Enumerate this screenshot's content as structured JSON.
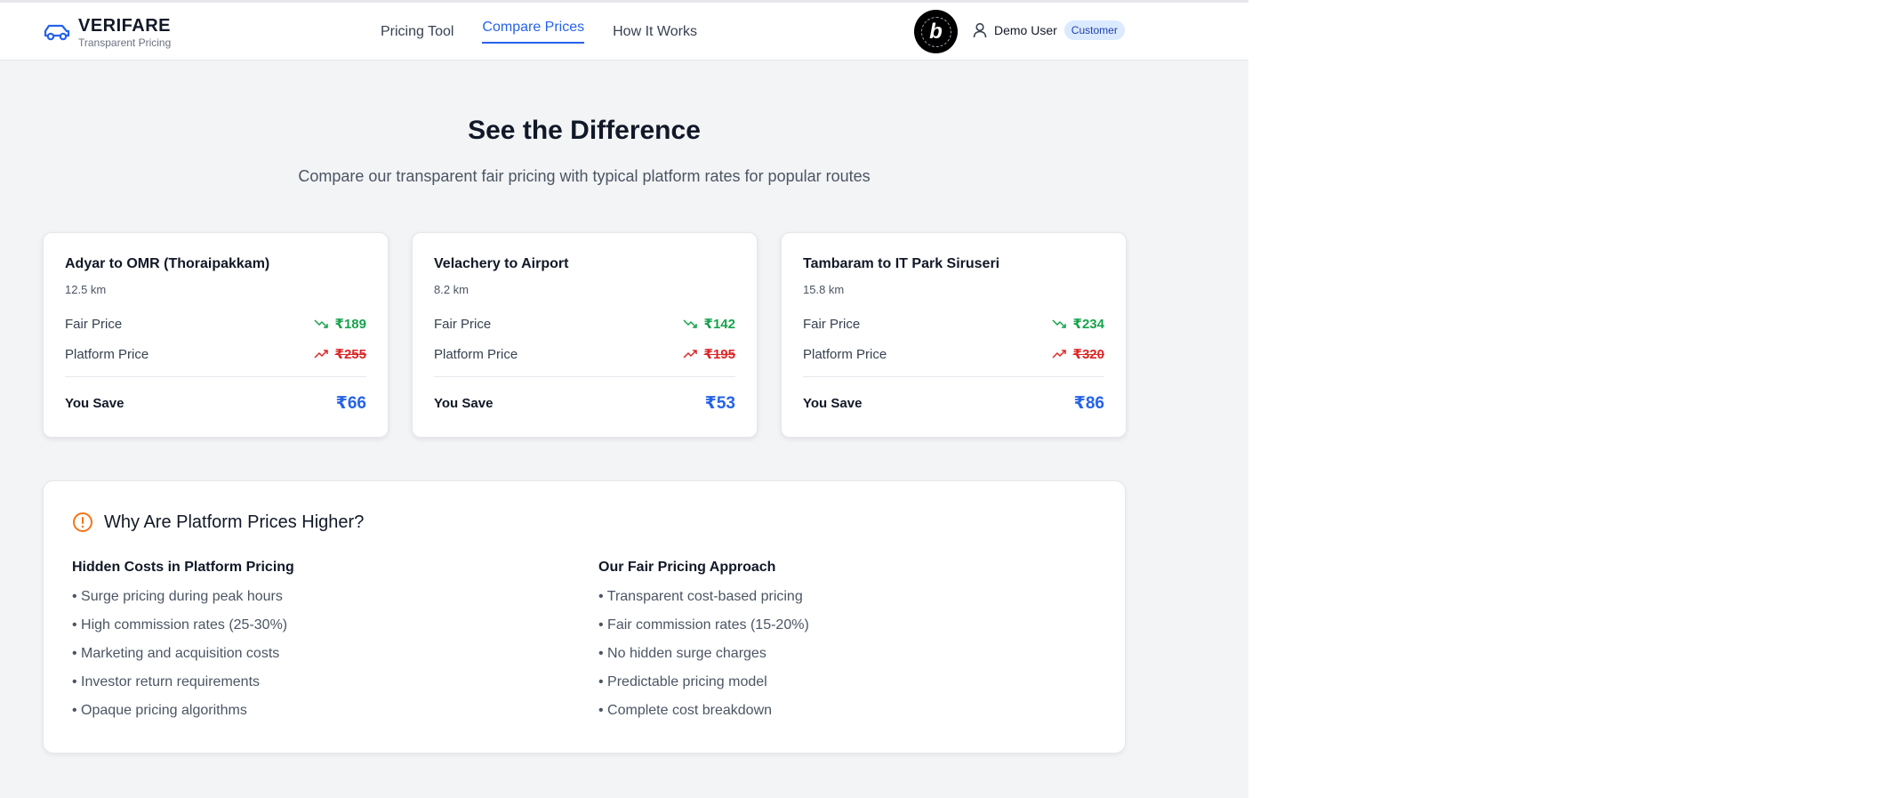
{
  "brand": {
    "name": "VERIFARE",
    "tagline": "Transparent Pricing"
  },
  "nav": [
    {
      "label": "Pricing Tool",
      "active": false
    },
    {
      "label": "Compare Prices",
      "active": true
    },
    {
      "label": "How It Works",
      "active": false
    }
  ],
  "user": {
    "name": "Demo User",
    "role": "Customer"
  },
  "hero": {
    "title": "See the Difference",
    "subtitle": "Compare our transparent fair pricing with typical platform rates for popular routes"
  },
  "labels": {
    "fair": "Fair Price",
    "platform": "Platform Price",
    "save": "You Save"
  },
  "routes": [
    {
      "name": "Adyar to OMR (Thoraipakkam)",
      "distance": "12.5 km",
      "fair": "₹189",
      "platform": "₹255",
      "save": "₹66"
    },
    {
      "name": "Velachery to Airport",
      "distance": "8.2 km",
      "fair": "₹142",
      "platform": "₹195",
      "save": "₹53"
    },
    {
      "name": "Tambaram to IT Park Siruseri",
      "distance": "15.8 km",
      "fair": "₹234",
      "platform": "₹320",
      "save": "₹86"
    }
  ],
  "why": {
    "title": "Why Are Platform Prices Higher?",
    "hidden": {
      "title": "Hidden Costs in Platform Pricing",
      "items": [
        "• Surge pricing during peak hours",
        "• High commission rates (25-30%)",
        "• Marketing and acquisition costs",
        "• Investor return requirements",
        "• Opaque pricing algorithms"
      ]
    },
    "fair": {
      "title": "Our Fair Pricing Approach",
      "items": [
        "• Transparent cost-based pricing",
        "• Fair commission rates (15-20%)",
        "• No hidden surge charges",
        "• Predictable pricing model",
        "• Complete cost breakdown"
      ]
    }
  },
  "colors": {
    "accent": "#2563eb",
    "fair": "#16a34a",
    "platform": "#dc2626",
    "warning": "#f97316"
  },
  "icons": {
    "logo": "car-icon",
    "user": "user-icon",
    "fair": "trending-down-icon",
    "platform": "trending-up-icon",
    "why": "alert-circle-icon"
  }
}
